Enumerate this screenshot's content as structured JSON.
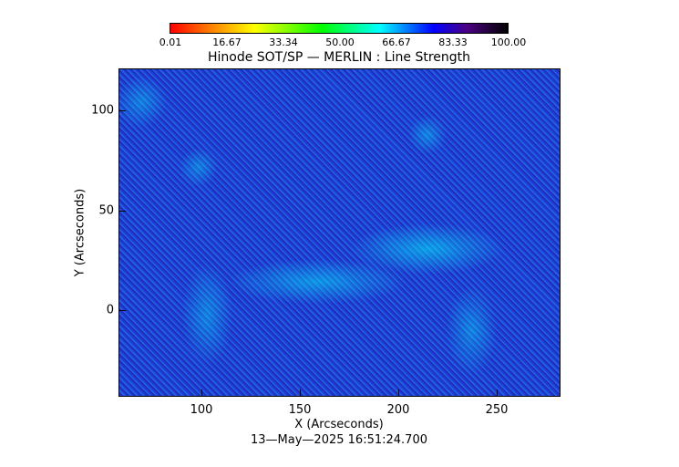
{
  "colorbar": {
    "ticks": [
      "0.01",
      "16.67",
      "33.34",
      "50.00",
      "66.67",
      "83.33",
      "100.00"
    ],
    "colors": [
      "#ff0000",
      "#ffff00",
      "#00ff00",
      "#00ffff",
      "#0000ff",
      "#000000"
    ]
  },
  "title": "Hinode SOT/SP — MERLIN : Line Strength",
  "x_axis": {
    "label": "X (Arcseconds)",
    "ticks": [
      "100",
      "150",
      "200",
      "250"
    ]
  },
  "y_axis": {
    "label": "Y (Arcseconds)",
    "ticks": [
      "100",
      "50",
      "0"
    ]
  },
  "timestamp": "13—May—2025 16:51:24.700"
}
